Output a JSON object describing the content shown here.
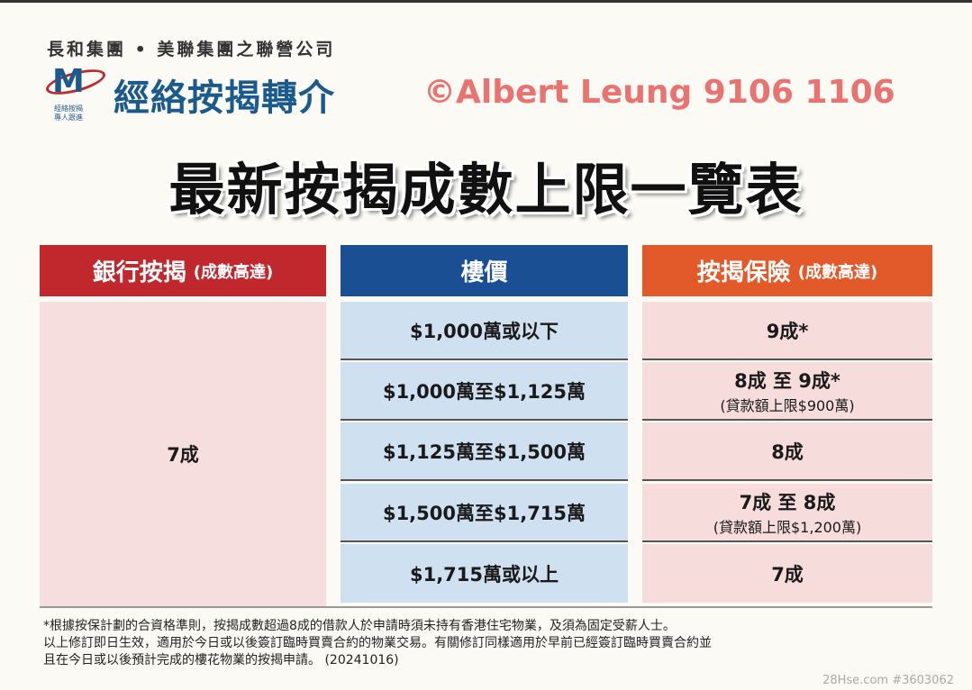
{
  "header": {
    "group_line": "長和集團 • 美聯集團之聯營公司",
    "brand": "經絡按揭轉介",
    "logo_sub1": "經絡按揭",
    "logo_sub2": "專人跟進"
  },
  "title": "最新按揭成數上限一覽表",
  "columns": [
    {
      "label": "銀行按揭",
      "sub": "(成數高達)",
      "color": "#c0282d"
    },
    {
      "label": "樓價",
      "sub": "",
      "color": "#1b4f94"
    },
    {
      "label": "按揭保險",
      "sub": "(成數高達)",
      "color": "#e2592a"
    }
  ],
  "bank_ratio": "7成",
  "rows": [
    {
      "price": "$1,000萬或以下",
      "insurance": "9成*",
      "note": ""
    },
    {
      "price": "$1,000萬至$1,125萬",
      "insurance": "8成 至 9成*",
      "note": "(貸款額上限$900萬)"
    },
    {
      "price": "$1,125萬至$1,500萬",
      "insurance": "8成",
      "note": ""
    },
    {
      "price": "$1,500萬至$1,715萬",
      "insurance": "7成 至 8成",
      "note": "(貸款額上限$1,200萬)"
    },
    {
      "price": "$1,715萬或以上",
      "insurance": "7成",
      "note": ""
    }
  ],
  "footnote": [
    "*根據按保計劃的合資格準則，按揭成數超過8成的借款人於申請時須未持有香港住宅物業，及須為固定受薪人士。",
    "以上修訂即日生效，適用於今日或以後簽訂臨時買賣合約的物業交易。有關修訂同樣適用於早前已經簽訂臨時買賣合約並",
    "且在今日或以後預計完成的樓花物業的按揭申請。 (20241016)"
  ],
  "watermarks": {
    "main": "©Albert Leung 9106 1106",
    "site": "28Hse.com #3603062"
  }
}
